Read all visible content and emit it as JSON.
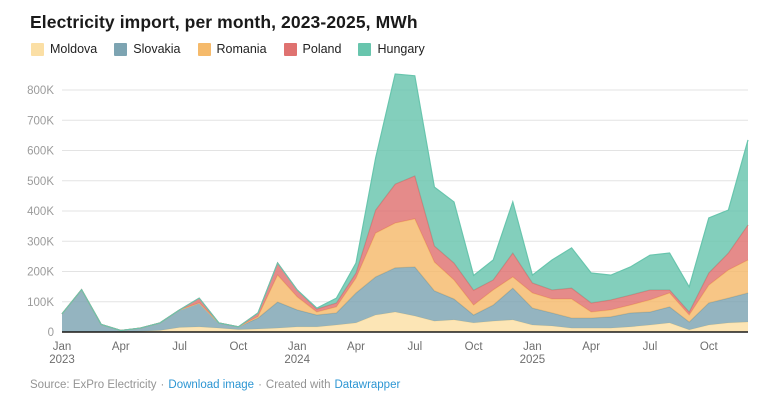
{
  "title": "Electricity import, per month, 2023-2025, MWh",
  "legend": {
    "items": [
      {
        "label": "Moldova",
        "color": "#fbdfa5"
      },
      {
        "label": "Slovakia",
        "color": "#7da4b2"
      },
      {
        "label": "Romania",
        "color": "#f5ba6b"
      },
      {
        "label": "Poland",
        "color": "#df7270"
      },
      {
        "label": "Hungary",
        "color": "#68c5ad"
      }
    ]
  },
  "footer": {
    "source_text": "Source: ExPro Electricity",
    "separator": "·",
    "download_link": "Download image",
    "created_with": "Created with",
    "tool_link": "Datawrapper"
  },
  "colors": {
    "title": "#1a1a1a",
    "grid": "#e3e3e3",
    "axis_baseline": "#1a1a1a",
    "y_tick_label": "#9b9b9b",
    "x_tick_label": "#6e6e6e",
    "footer_text": "#949494",
    "link": "#2d96d3",
    "background": "#ffffff"
  },
  "chart_data": {
    "type": "area",
    "stacked": true,
    "title": "Electricity import, per month, 2023-2025, MWh",
    "unit": "MWh",
    "value_scale": "thousands of MWh",
    "grid": true,
    "legend_position": "top",
    "ylim_thousands": [
      0,
      800
    ],
    "x": [
      "Jan 2023",
      "Feb 2023",
      "Mar 2023",
      "Apr 2023",
      "May 2023",
      "Jun 2023",
      "Jul 2023",
      "Aug 2023",
      "Sep 2023",
      "Oct 2023",
      "Nov 2023",
      "Dec 2023",
      "Jan 2024",
      "Feb 2024",
      "Mar 2024",
      "Apr 2024",
      "May 2024",
      "Jun 2024",
      "Jul 2024",
      "Aug 2024",
      "Sep 2024",
      "Oct 2024",
      "Nov 2024",
      "Dec 2024",
      "Jan 2025",
      "Feb 2025",
      "Mar 2025",
      "Apr 2025",
      "May 2025",
      "Jun 2025",
      "Jul 2025",
      "Aug 2025",
      "Sep 2025",
      "Oct 2025",
      "Nov 2025",
      "Dec 2025"
    ],
    "series": [
      {
        "name": "Moldova",
        "color": "#fbdfa5",
        "values_thousands": [
          0,
          0,
          0,
          1,
          2,
          5,
          15,
          17,
          13,
          8,
          10,
          13,
          17,
          17,
          23,
          30,
          56,
          66,
          53,
          36,
          40,
          30,
          36,
          40,
          23,
          20,
          13,
          13,
          13,
          17,
          23,
          30,
          7,
          23,
          30,
          33
        ]
      },
      {
        "name": "Slovakia",
        "color": "#7da4b2",
        "values_thousands": [
          60,
          140,
          25,
          4,
          11,
          25,
          58,
          79,
          17,
          9,
          36,
          86,
          56,
          39,
          40,
          99,
          126,
          146,
          162,
          100,
          69,
          26,
          53,
          105,
          56,
          43,
          33,
          33,
          37,
          46,
          43,
          53,
          26,
          73,
          82,
          96
        ]
      },
      {
        "name": "Romania",
        "color": "#f5ba6b",
        "values_thousands": [
          0,
          0,
          0,
          0,
          0,
          0,
          0,
          0,
          0,
          0,
          5,
          89,
          43,
          10,
          20,
          49,
          145,
          148,
          159,
          95,
          63,
          33,
          50,
          37,
          50,
          46,
          63,
          20,
          23,
          26,
          40,
          46,
          23,
          59,
          93,
          109
        ]
      },
      {
        "name": "Poland",
        "color": "#df7270",
        "values_thousands": [
          0,
          0,
          0,
          0,
          0,
          0,
          0,
          16,
          0,
          0,
          12,
          40,
          23,
          10,
          13,
          17,
          76,
          129,
          142,
          53,
          56,
          49,
          33,
          79,
          33,
          30,
          36,
          30,
          33,
          33,
          33,
          10,
          10,
          40,
          56,
          116
        ]
      },
      {
        "name": "Hungary",
        "color": "#68c5ad",
        "values_thousands": [
          0,
          0,
          0,
          0,
          0,
          0,
          0,
          0,
          0,
          0,
          0,
          0,
          0,
          3,
          16,
          33,
          172,
          364,
          331,
          195,
          202,
          49,
          66,
          169,
          26,
          99,
          133,
          99,
          82,
          93,
          115,
          122,
          83,
          182,
          142,
          281
        ]
      }
    ],
    "y_ticks": [
      {
        "v": 0,
        "label": "0"
      },
      {
        "v": 100,
        "label": "100K"
      },
      {
        "v": 200,
        "label": "200K"
      },
      {
        "v": 300,
        "label": "300K"
      },
      {
        "v": 400,
        "label": "400K"
      },
      {
        "v": 500,
        "label": "500K"
      },
      {
        "v": 600,
        "label": "600K"
      },
      {
        "v": 700,
        "label": "700K"
      },
      {
        "v": 800,
        "label": "800K"
      }
    ],
    "x_ticks": [
      {
        "i": 0,
        "month": "Jan",
        "year": "2023"
      },
      {
        "i": 3,
        "month": "Apr"
      },
      {
        "i": 6,
        "month": "Jul"
      },
      {
        "i": 9,
        "month": "Oct"
      },
      {
        "i": 12,
        "month": "Jan",
        "year": "2024"
      },
      {
        "i": 15,
        "month": "Apr"
      },
      {
        "i": 18,
        "month": "Jul"
      },
      {
        "i": 21,
        "month": "Oct"
      },
      {
        "i": 24,
        "month": "Jan",
        "year": "2025"
      },
      {
        "i": 27,
        "month": "Apr"
      },
      {
        "i": 30,
        "month": "Jul"
      },
      {
        "i": 33,
        "month": "Oct"
      }
    ]
  }
}
